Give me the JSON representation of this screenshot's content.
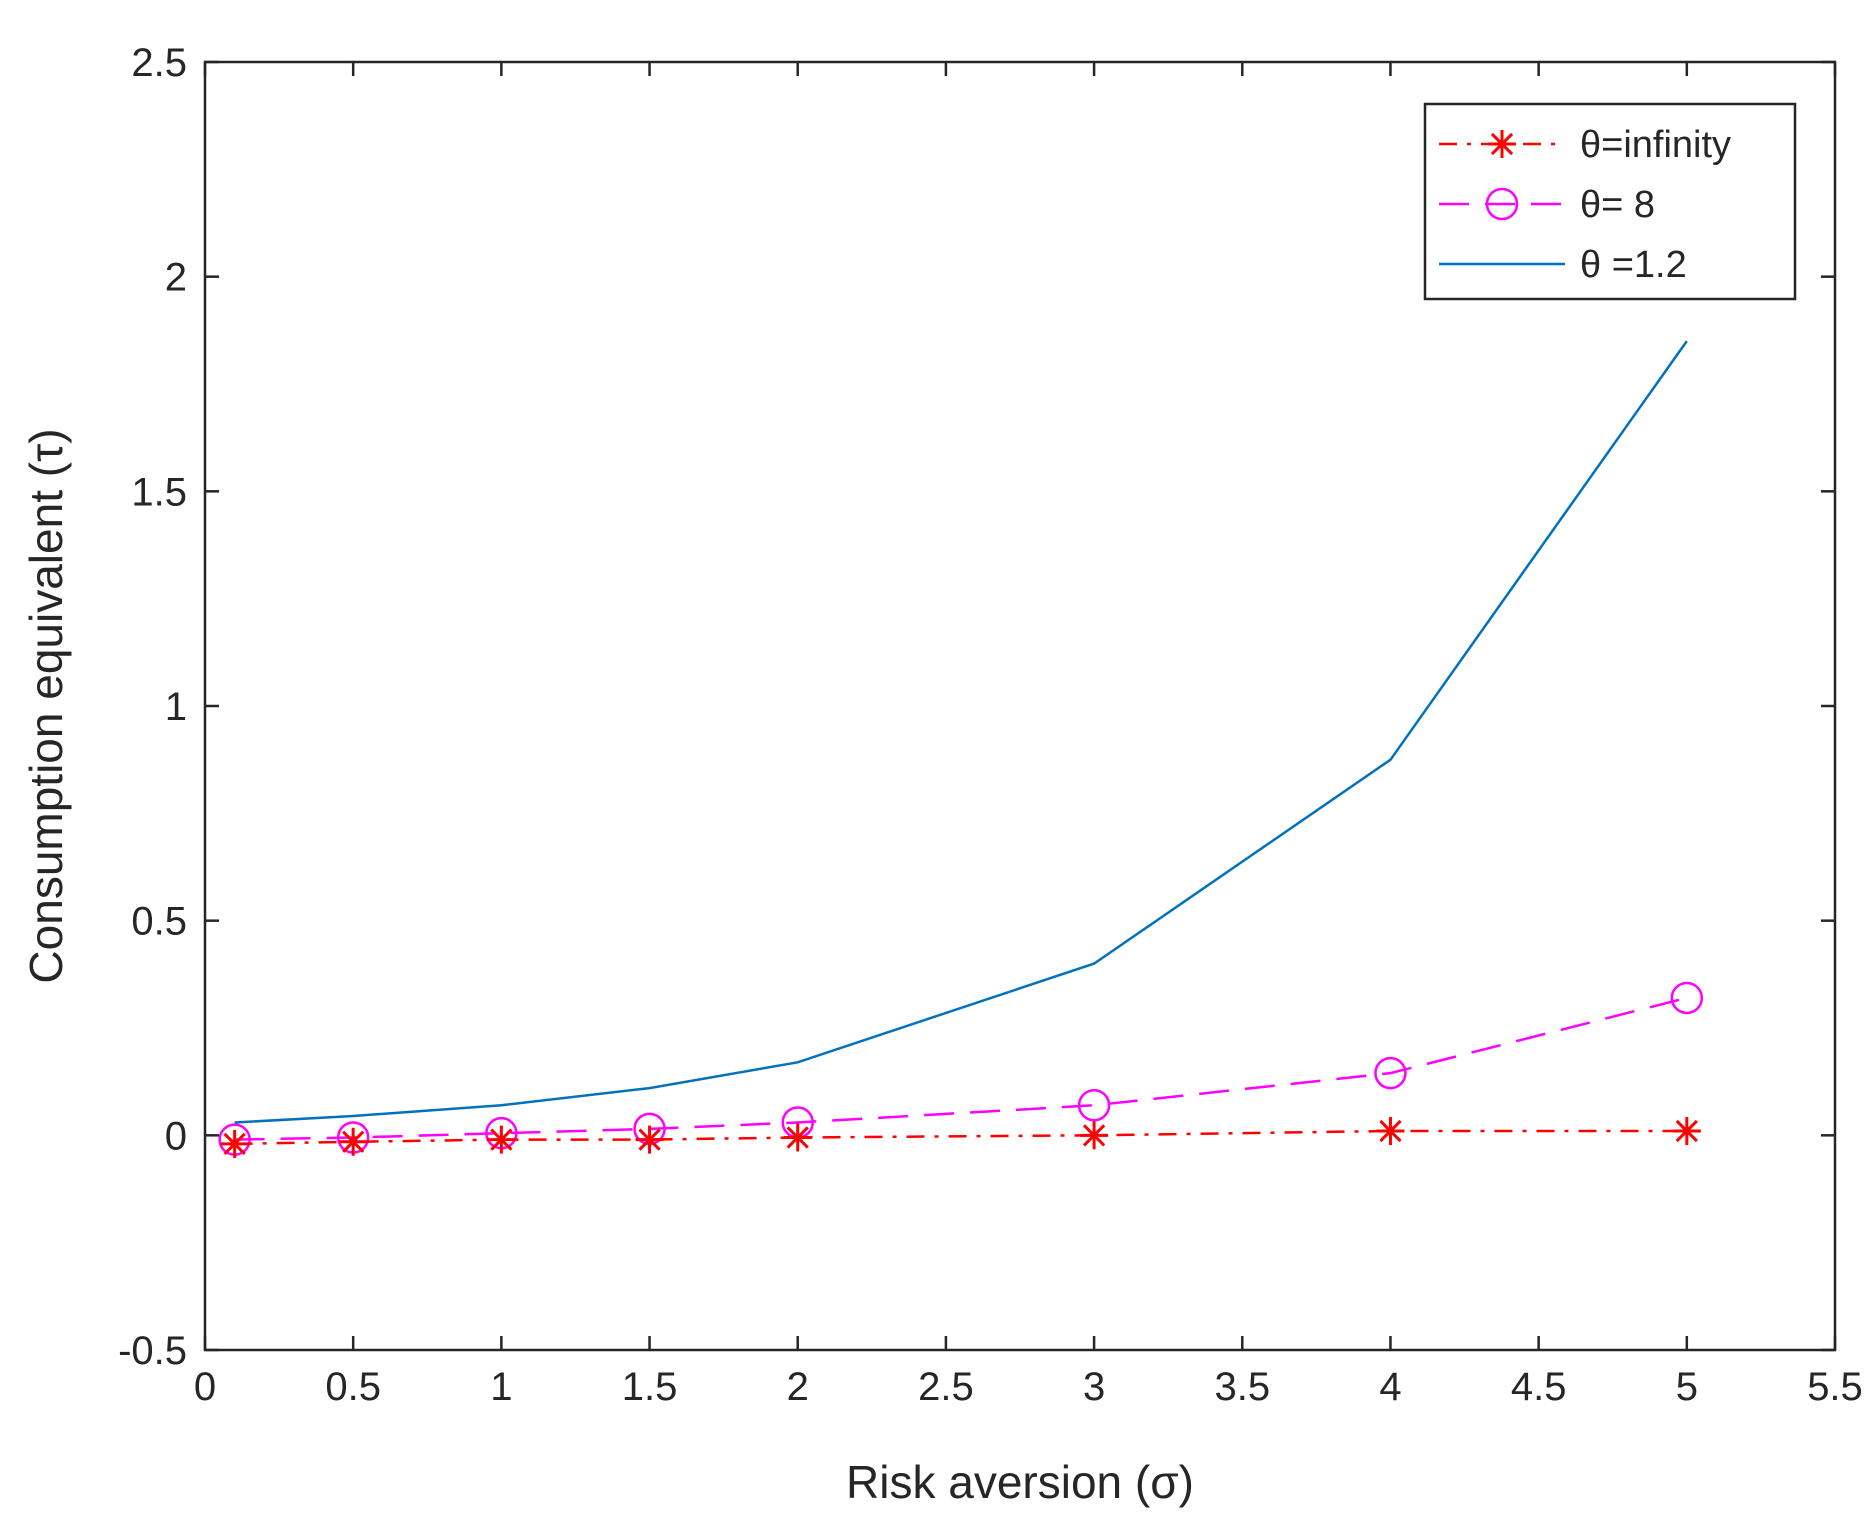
{
  "chart_data": {
    "type": "line",
    "title": "",
    "xlabel": "Risk aversion (σ)",
    "ylabel": "Consumption equivalent (τ)",
    "xlim": [
      0,
      5.5
    ],
    "ylim": [
      -0.5,
      2.5
    ],
    "xticks": [
      0,
      0.5,
      1,
      1.5,
      2,
      2.5,
      3,
      3.5,
      4,
      4.5,
      5,
      5.5
    ],
    "xtick_labels": [
      "0",
      "0.5",
      "1",
      "1.5",
      "2",
      "2.5",
      "3",
      "3.5",
      "4",
      "4.5",
      "5",
      "5.5"
    ],
    "yticks": [
      -0.5,
      0,
      0.5,
      1,
      1.5,
      2,
      2.5
    ],
    "ytick_labels": [
      "-0.5",
      "0",
      "0.5",
      "1",
      "1.5",
      "2",
      "2.5"
    ],
    "grid": false,
    "legend_position": "top-right",
    "x": [
      0.1,
      0.5,
      1,
      1.5,
      2,
      3,
      4,
      5
    ],
    "series": [
      {
        "name": "θ=infinity",
        "color": "#ff0000",
        "line_style": "dash-dot",
        "marker": "asterisk",
        "values": [
          -0.02,
          -0.015,
          -0.01,
          -0.01,
          -0.005,
          0.0,
          0.01,
          0.01
        ]
      },
      {
        "name": "θ= 8",
        "color": "#ff00ff",
        "line_style": "dashed",
        "marker": "circle",
        "values": [
          -0.01,
          -0.005,
          0.005,
          0.015,
          0.03,
          0.07,
          0.145,
          0.32
        ]
      },
      {
        "name": "θ =1.2",
        "color": "#0072bd",
        "line_style": "solid",
        "marker": "none",
        "values": [
          0.03,
          0.045,
          0.07,
          0.11,
          0.17,
          0.4,
          0.875,
          1.85
        ]
      }
    ]
  }
}
